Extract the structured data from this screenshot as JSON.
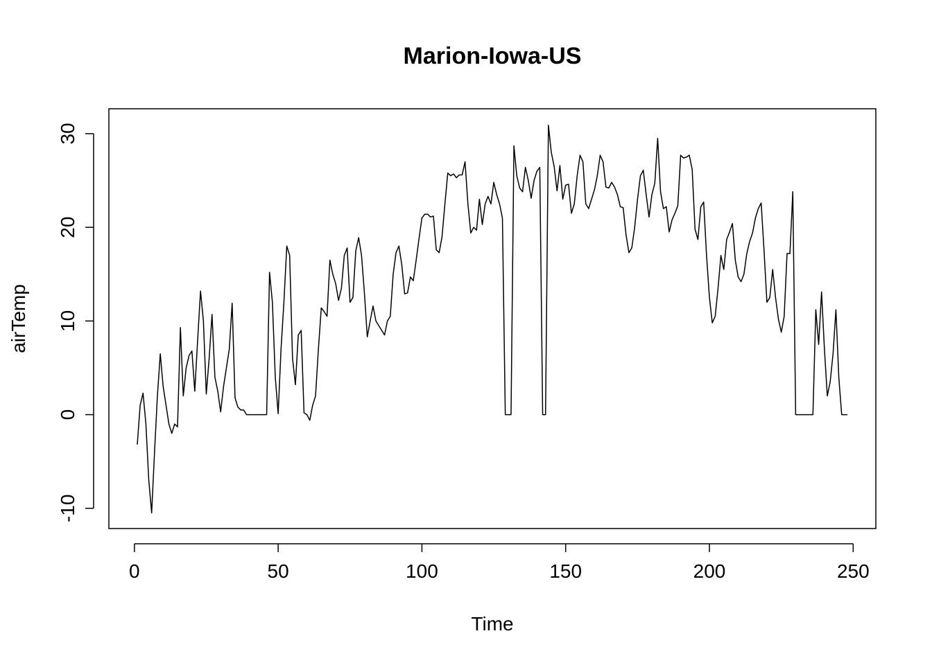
{
  "chart_data": {
    "type": "line",
    "title": "Marion-Iowa-US",
    "x_label": "Time",
    "y_label": "airTemp",
    "x": [
      1,
      2,
      3,
      4,
      5,
      6,
      7,
      8,
      9,
      10,
      11,
      12,
      13,
      14,
      15,
      16,
      17,
      18,
      19,
      20,
      21,
      22,
      23,
      24,
      25,
      26,
      27,
      28,
      29,
      30,
      31,
      32,
      33,
      34,
      35,
      36,
      37,
      38,
      39,
      40,
      41,
      42,
      43,
      44,
      45,
      46,
      47,
      48,
      49,
      50,
      51,
      52,
      53,
      54,
      55,
      56,
      57,
      58,
      59,
      60,
      61,
      62,
      63,
      64,
      65,
      66,
      67,
      68,
      69,
      70,
      71,
      72,
      73,
      74,
      75,
      76,
      77,
      78,
      79,
      80,
      81,
      82,
      83,
      84,
      85,
      86,
      87,
      88,
      89,
      90,
      91,
      92,
      93,
      94,
      95,
      96,
      97,
      98,
      99,
      100,
      101,
      102,
      103,
      104,
      105,
      106,
      107,
      108,
      109,
      110,
      111,
      112,
      113,
      114,
      115,
      116,
      117,
      118,
      119,
      120,
      121,
      122,
      123,
      124,
      125,
      126,
      127,
      128,
      129,
      130,
      131,
      132,
      133,
      134,
      135,
      136,
      137,
      138,
      139,
      140,
      141,
      142,
      143,
      144,
      145,
      146,
      147,
      148,
      149,
      150,
      151,
      152,
      153,
      154,
      155,
      156,
      157,
      158,
      159,
      160,
      161,
      162,
      163,
      164,
      165,
      166,
      167,
      168,
      169,
      170,
      171,
      172,
      173,
      174,
      175,
      176,
      177,
      178,
      179,
      180,
      181,
      182,
      183,
      184,
      185,
      186,
      187,
      188,
      189,
      190,
      191,
      192,
      193,
      194,
      195,
      196,
      197,
      198,
      199,
      200,
      201,
      202,
      203,
      204,
      205,
      206,
      207,
      208,
      209,
      210,
      211,
      212,
      213,
      214,
      215,
      216,
      217,
      218,
      219,
      220,
      221,
      222,
      223,
      224,
      225,
      226,
      227,
      228,
      229,
      230,
      231,
      232,
      233,
      234,
      235,
      236,
      237,
      238,
      239,
      240,
      241,
      242,
      243,
      244,
      245,
      246,
      247,
      248
    ],
    "series": [
      {
        "color": "#000000",
        "values": [
          -3.2,
          1,
          2.3,
          -1,
          -7,
          -10.5,
          -4,
          2,
          6.5,
          3,
          1,
          -1,
          -2,
          -1,
          -1.3,
          9.3,
          2,
          5,
          6.3,
          6.8,
          2.5,
          8,
          13.2,
          10,
          2.2,
          6,
          10.7,
          4,
          2.5,
          0.3,
          3,
          5,
          7,
          11.9,
          1.8,
          0.8,
          0.5,
          0.5,
          0,
          0,
          0,
          0,
          0,
          0,
          0,
          0,
          15.2,
          12,
          4,
          0.1,
          7,
          12,
          18,
          17,
          6,
          3.2,
          8.5,
          9,
          0.2,
          0,
          -0.6,
          1,
          2,
          7,
          11.4,
          11,
          10.5,
          16.5,
          15,
          14,
          12.2,
          13.5,
          17,
          17.8,
          12,
          12.5,
          17.5,
          18.9,
          17,
          13,
          8.3,
          10,
          11.6,
          10,
          9.5,
          9,
          8.5,
          10,
          10.5,
          15,
          17.3,
          18,
          16,
          12.9,
          13,
          14.7,
          14.3,
          16.5,
          18.8,
          21,
          21.4,
          21.4,
          21.1,
          21.2,
          17.6,
          17.3,
          19,
          22.5,
          25.8,
          25.5,
          25.7,
          25.3,
          25.6,
          25.6,
          27,
          22.5,
          19.4,
          20,
          19.7,
          23,
          20.3,
          22.5,
          23.3,
          22.5,
          24.8,
          23.5,
          22.5,
          21,
          0,
          0,
          0,
          28.7,
          25.5,
          24.2,
          23.8,
          26.4,
          25,
          23.1,
          25,
          26,
          26.4,
          0,
          0,
          30.9,
          28,
          26.5,
          23.9,
          26.6,
          23,
          24.5,
          24.6,
          21.5,
          22.5,
          25.5,
          27.7,
          27,
          22.5,
          22,
          23,
          24,
          25.5,
          27.7,
          27,
          24.3,
          24.2,
          24.8,
          24.3,
          23.5,
          22.2,
          22.1,
          19.2,
          17.3,
          17.8,
          20,
          23,
          25.5,
          26.1,
          23.5,
          21.1,
          23.5,
          24.7,
          29.5,
          23.8,
          22,
          22.2,
          19.5,
          20.8,
          21.5,
          22.3,
          27.7,
          27.4,
          27.5,
          27.7,
          26.2,
          19.8,
          18.7,
          22.2,
          22.7,
          17,
          12.5,
          9.8,
          10.5,
          13.5,
          17,
          15.5,
          18.7,
          19.5,
          20.4,
          16.5,
          14.7,
          14.2,
          15,
          17.2,
          18.5,
          19.4,
          21,
          22,
          22.6,
          17.5,
          12,
          12.5,
          15.5,
          12.5,
          10.2,
          8.8,
          10.5,
          17.2,
          17.2,
          23.8,
          0,
          0,
          0,
          0,
          0,
          0,
          0,
          11.2,
          7.5,
          13.1,
          7,
          2,
          3.5,
          6.5,
          11.2,
          4,
          0,
          0,
          0
        ]
      }
    ],
    "xlim": [
      -8.88,
      257.88
    ],
    "ylim": [
      -12.16,
      32.66
    ],
    "xticks": [
      0,
      50,
      100,
      150,
      200,
      250
    ],
    "yticks": [
      -10,
      0,
      10,
      20,
      30
    ]
  }
}
